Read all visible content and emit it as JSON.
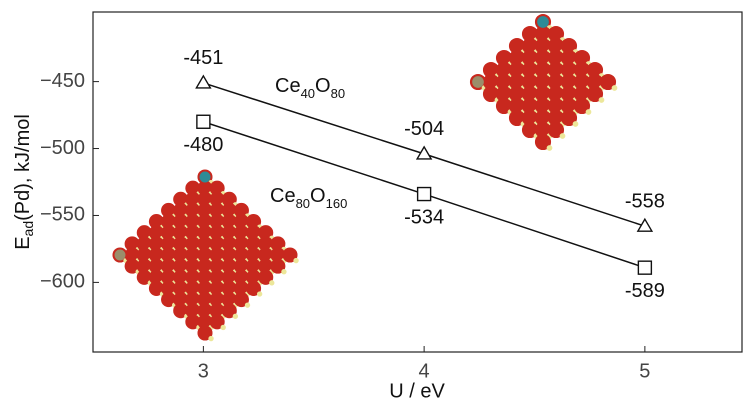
{
  "chart_data": {
    "type": "line",
    "x_label": "U / eV",
    "y_label": "Ead(Pd), kJ/mol",
    "x": [
      3,
      4,
      5
    ],
    "series": [
      {
        "name": "Ce40O80",
        "color": "#111111",
        "marker": "triangle",
        "values": [
          -451,
          -504,
          -558
        ]
      },
      {
        "name": "Ce80O160",
        "color": "#111111",
        "marker": "square",
        "values": [
          -480,
          -534,
          -589
        ]
      }
    ],
    "xlim": [
      2.5,
      5.44
    ],
    "xticks": [
      3,
      4,
      5
    ],
    "ylim": [
      -652,
      -398
    ],
    "yticks": [
      {
        "value": -450,
        "label": "−450"
      },
      {
        "value": -500,
        "label": "−500"
      },
      {
        "value": -550,
        "label": "−550"
      },
      {
        "value": -600,
        "label": "−600"
      }
    ]
  }
}
